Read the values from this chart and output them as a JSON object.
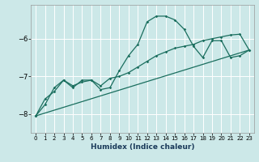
{
  "xlabel": "Humidex (Indice chaleur)",
  "ylabel": "",
  "bg_color": "#cce8e8",
  "grid_color": "#ffffff",
  "line_color": "#1a6e5e",
  "xlim": [
    -0.5,
    23.5
  ],
  "ylim": [
    -8.5,
    -5.1
  ],
  "yticks": [
    -8,
    -7,
    -6
  ],
  "xticks": [
    0,
    1,
    2,
    3,
    4,
    5,
    6,
    7,
    8,
    9,
    10,
    11,
    12,
    13,
    14,
    15,
    16,
    17,
    18,
    19,
    20,
    21,
    22,
    23
  ],
  "series1_x": [
    0,
    1,
    2,
    3,
    4,
    5,
    6,
    7,
    8,
    9,
    10,
    11,
    12,
    13,
    14,
    15,
    16,
    17,
    18,
    19,
    20,
    21,
    22,
    23
  ],
  "series1_y": [
    -8.05,
    -7.75,
    -7.3,
    -7.1,
    -7.3,
    -7.1,
    -7.1,
    -7.35,
    -7.3,
    -6.85,
    -6.45,
    -6.15,
    -5.55,
    -5.4,
    -5.4,
    -5.5,
    -5.75,
    -6.2,
    -6.5,
    -6.05,
    -6.05,
    -6.5,
    -6.45,
    -6.3
  ],
  "series2_x": [
    0,
    1,
    2,
    3,
    4,
    5,
    6,
    7,
    8,
    9,
    10,
    11,
    12,
    13,
    14,
    15,
    16,
    17,
    18,
    19,
    20,
    21,
    22,
    23
  ],
  "series2_y": [
    -8.05,
    -7.6,
    -7.4,
    -7.1,
    -7.25,
    -7.15,
    -7.1,
    -7.25,
    -7.05,
    -7.0,
    -6.9,
    -6.75,
    -6.6,
    -6.45,
    -6.35,
    -6.25,
    -6.2,
    -6.15,
    -6.05,
    -6.0,
    -5.95,
    -5.9,
    -5.88,
    -6.3
  ],
  "series3_x": [
    0,
    23
  ],
  "series3_y": [
    -8.05,
    -6.3
  ]
}
